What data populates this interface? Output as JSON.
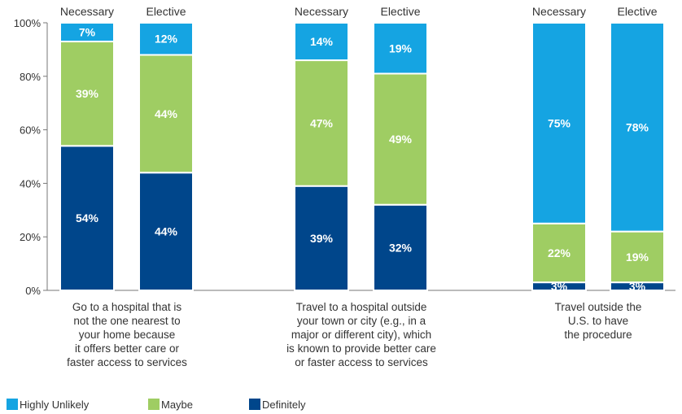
{
  "chart_data": {
    "type": "bar",
    "stacked": true,
    "orientation": "vertical",
    "ylim": [
      0,
      100
    ],
    "y_ticks": [
      "0%",
      "20%",
      "40%",
      "60%",
      "80%",
      "100%"
    ],
    "bar_headers": [
      "Necessary",
      "Elective",
      "Necessary",
      "Elective",
      "Necessary",
      "Elective"
    ],
    "groups": [
      "Go to a hospital that is\nnot the one nearest to\nyour home because\nit offers better care or\nfaster access to services",
      "Travel to a hospital outside\nyour town or city (e.g., in a\nmajor or different city), which\nis known to provide better care\nor faster access to services",
      "Travel outside the\nU.S. to have\nthe procedure"
    ],
    "series": [
      {
        "name": "Definitely",
        "color": "#00468b",
        "values": [
          54,
          44,
          39,
          32,
          3,
          3
        ],
        "labels": [
          "54%",
          "44%",
          "39%",
          "32%",
          "3%",
          "3%"
        ]
      },
      {
        "name": "Maybe",
        "color": "#9fcd63",
        "values": [
          39,
          44,
          47,
          49,
          22,
          19
        ],
        "labels": [
          "39%",
          "44%",
          "47%",
          "49%",
          "22%",
          "19%"
        ]
      },
      {
        "name": "Highly Unlikely",
        "color": "#15a4e2",
        "values": [
          7,
          12,
          14,
          19,
          75,
          78
        ],
        "labels": [
          "7%",
          "12%",
          "14%",
          "19%",
          "75%",
          "78%"
        ]
      }
    ],
    "legend": {
      "position": "bottom-left",
      "order": [
        "Highly Unlikely",
        "Maybe",
        "Definitely"
      ]
    }
  }
}
